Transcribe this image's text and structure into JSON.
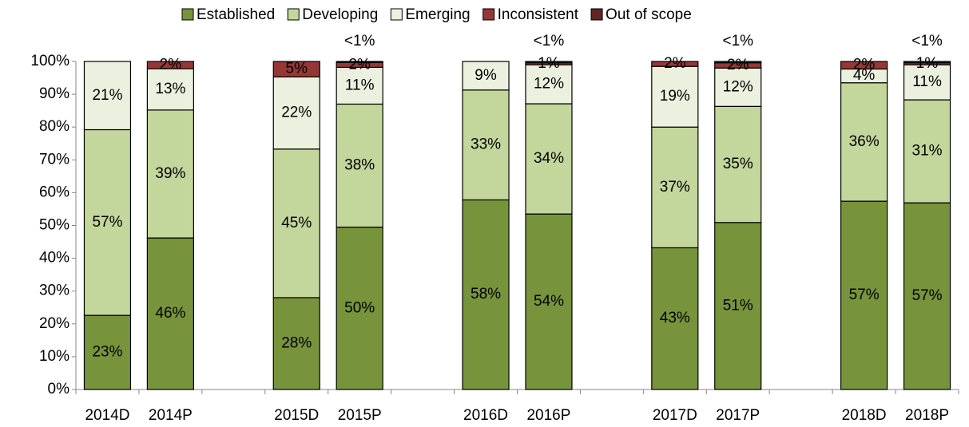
{
  "chart_data": {
    "type": "stacked_bar",
    "categories": [
      "2014D",
      "2014P",
      null,
      "2015D",
      "2015P",
      null,
      "2016D",
      "2016P",
      null,
      "2017D",
      "2017P",
      null,
      "2018D",
      "2018P"
    ],
    "series": [
      {
        "name": "Established",
        "color": "#77933c",
        "values": [
          22.6,
          46.2,
          null,
          28,
          49.5,
          null,
          57.8,
          53.5,
          null,
          43.2,
          50.9,
          null,
          57.4,
          56.9
        ],
        "value_labels": [
          "23%",
          "46%",
          null,
          "28%",
          "50%",
          null,
          "58%",
          "54%",
          null,
          "43%",
          "51%",
          null,
          "57%",
          "57%"
        ]
      },
      {
        "name": "Developing",
        "color": "#c3d69b",
        "values": [
          56.6,
          39,
          null,
          45.3,
          37.5,
          null,
          33.5,
          33.6,
          null,
          36.8,
          35.4,
          null,
          36.1,
          31.4
        ],
        "value_labels": [
          "57%",
          "39%",
          null,
          "45%",
          "38%",
          null,
          "33%",
          "34%",
          null,
          "37%",
          "35%",
          null,
          "36%",
          "31%"
        ]
      },
      {
        "name": "Emerging",
        "color": "#ebf1de",
        "values": [
          20.8,
          12.6,
          null,
          22,
          11.2,
          null,
          8.7,
          11.9,
          null,
          18.5,
          11.7,
          null,
          4.2,
          10.7
        ],
        "value_labels": [
          "21%",
          "13%",
          null,
          "22%",
          "11%",
          null,
          "9%",
          "12%",
          null,
          "19%",
          "12%",
          null,
          "4%",
          "11%"
        ]
      },
      {
        "name": "Inconsistent",
        "color": "#953735",
        "values": [
          0,
          2.2,
          null,
          4.7,
          1.5,
          null,
          0,
          0.6,
          null,
          1.5,
          1.6,
          null,
          2.3,
          0.6
        ],
        "value_labels": [
          null,
          "2%",
          null,
          "5%",
          "2%",
          null,
          null,
          "1%",
          null,
          "2%",
          "2%",
          null,
          "2%",
          "1%"
        ]
      },
      {
        "name": "Out of scope",
        "color": "#632523",
        "values": [
          0,
          0,
          null,
          0,
          0.3,
          null,
          0,
          0.4,
          null,
          0,
          0.4,
          null,
          0,
          0.4
        ],
        "value_labels": [
          null,
          null,
          null,
          null,
          "<1%",
          null,
          null,
          "<1%",
          null,
          null,
          "<1%",
          null,
          null,
          "<1%"
        ]
      }
    ],
    "ylim": [
      0,
      100
    ],
    "yticks": [
      {
        "value": 0,
        "label": "0%"
      },
      {
        "value": 10,
        "label": "10%"
      },
      {
        "value": 20,
        "label": "20%"
      },
      {
        "value": 30,
        "label": "30%"
      },
      {
        "value": 40,
        "label": "40%"
      },
      {
        "value": 50,
        "label": "50%"
      },
      {
        "value": 60,
        "label": "60%"
      },
      {
        "value": 70,
        "label": "70%"
      },
      {
        "value": 80,
        "label": "80%"
      },
      {
        "value": 90,
        "label": "90%"
      },
      {
        "value": 100,
        "label": "100%"
      }
    ],
    "legend": "top"
  }
}
